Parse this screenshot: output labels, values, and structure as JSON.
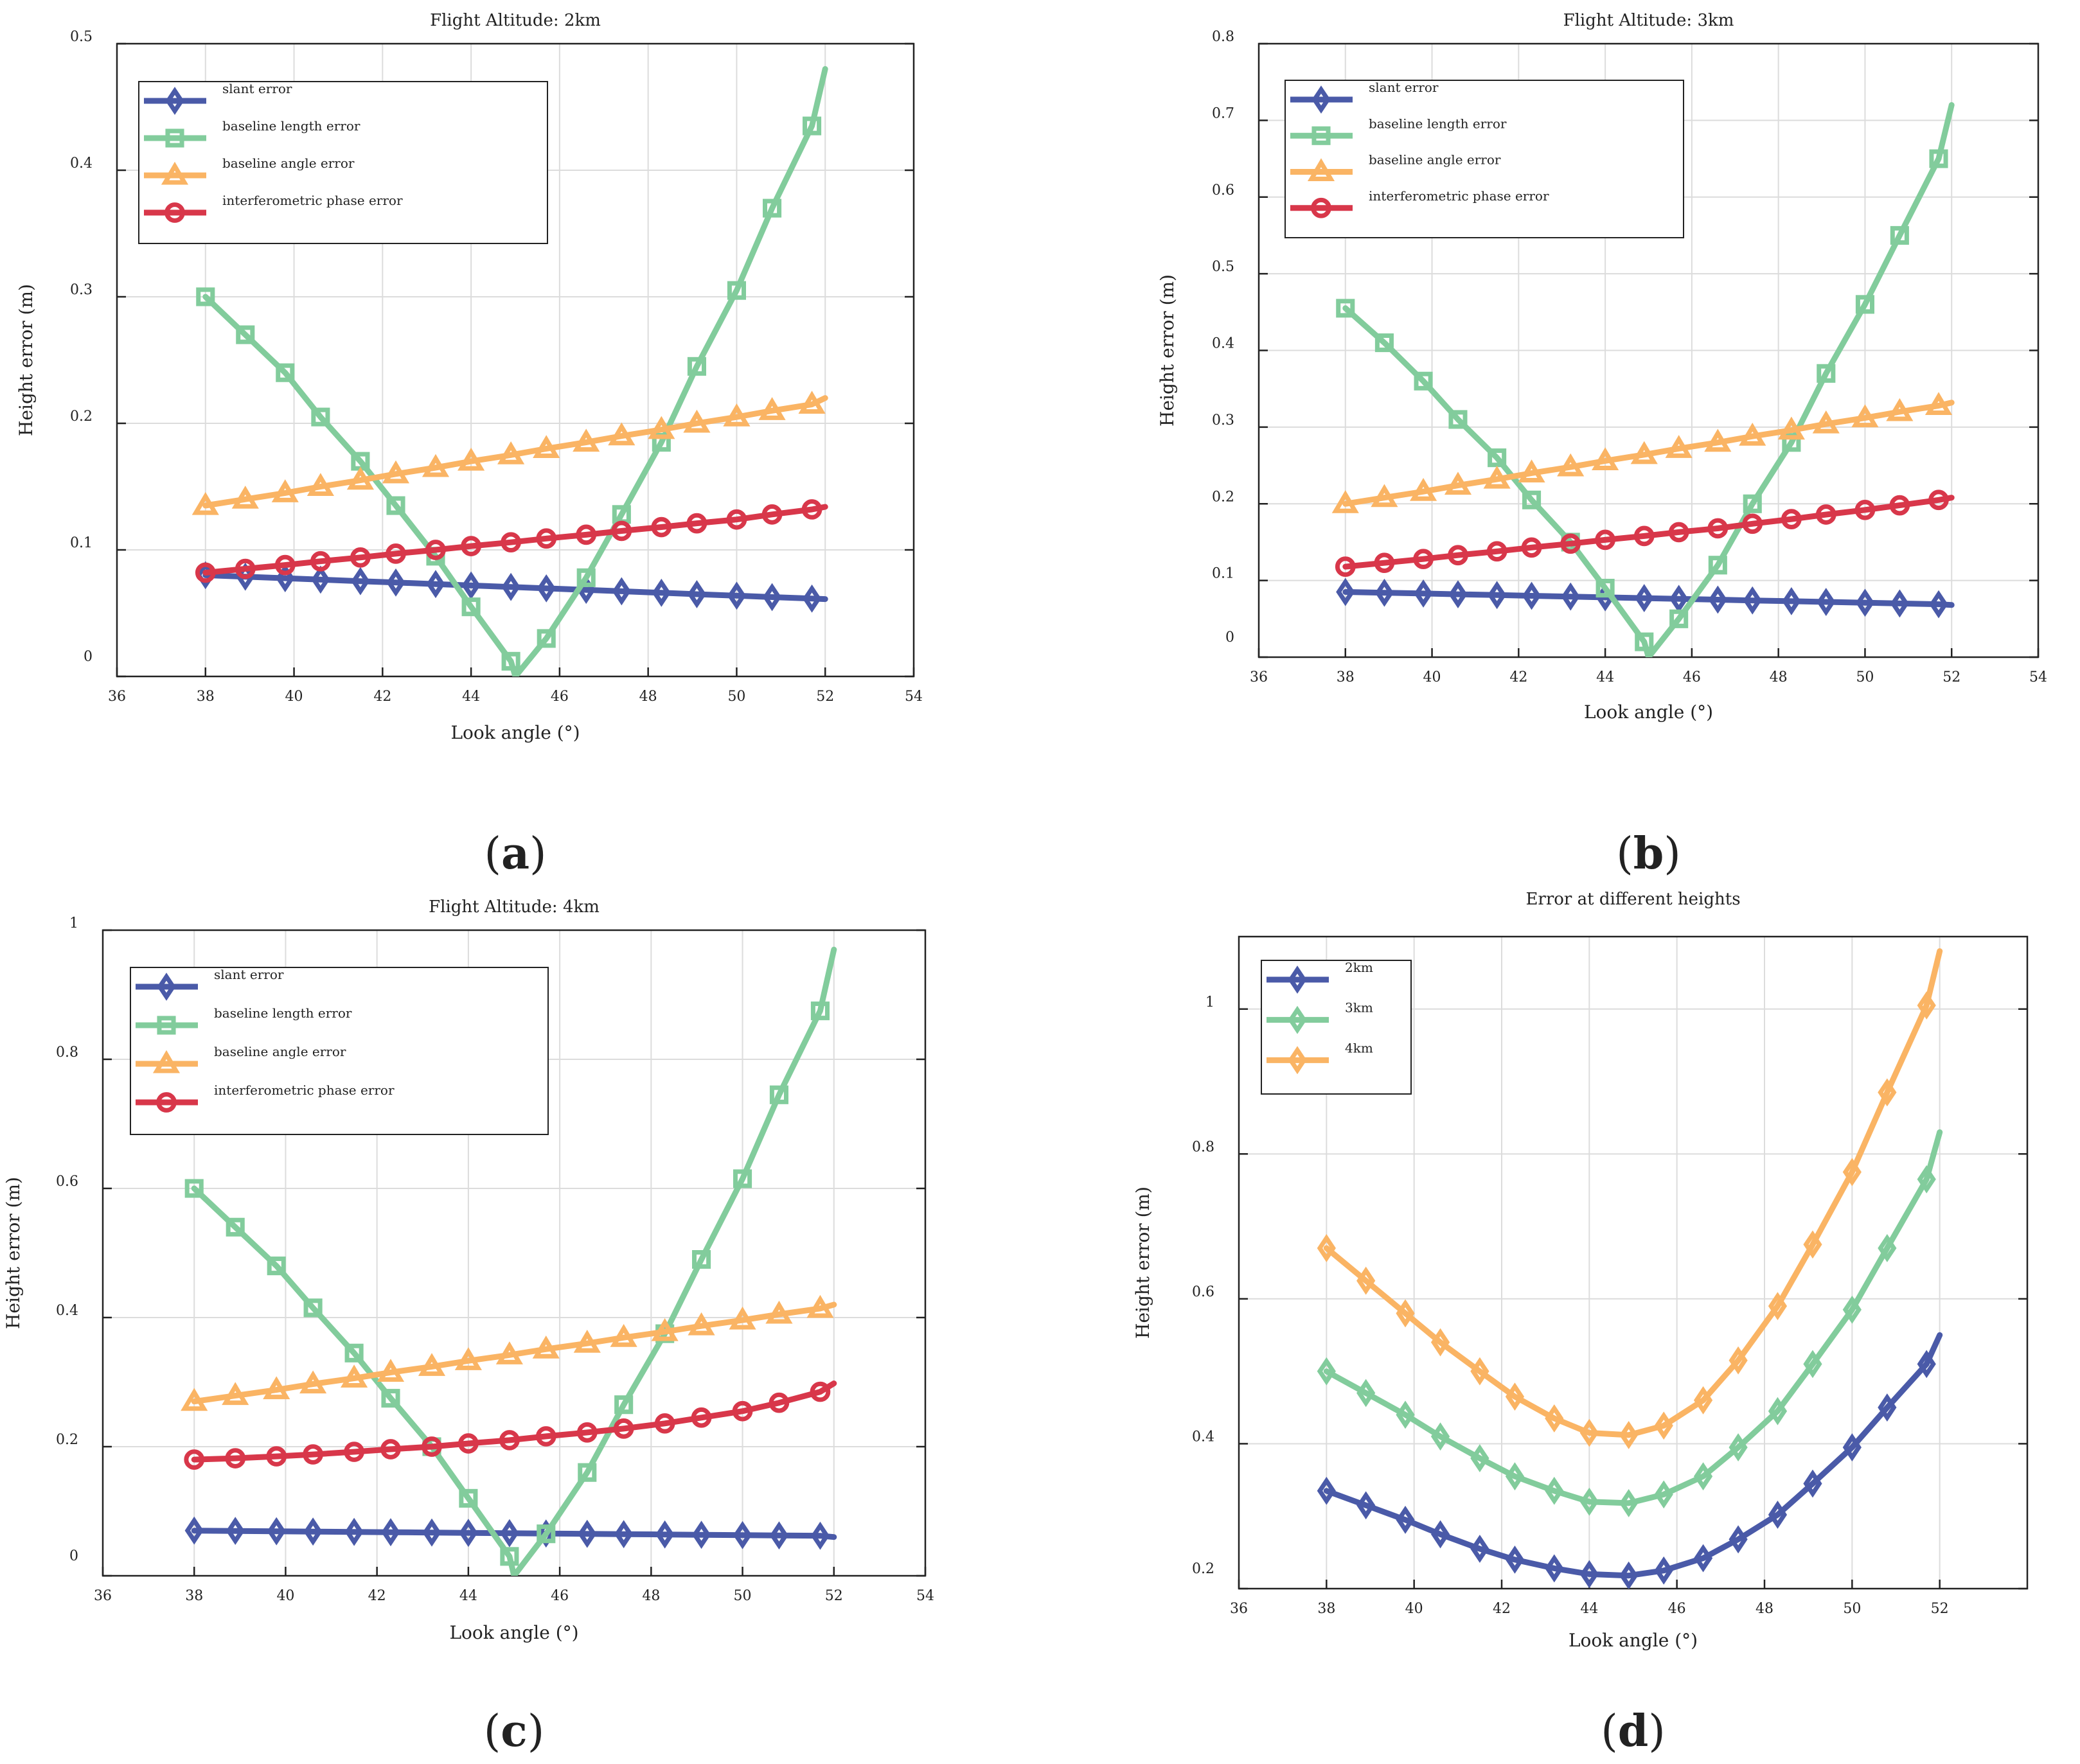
{
  "colors": {
    "slant": "#4a5aa8",
    "baseline_length": "#82cc9c",
    "baseline_angle": "#fab464",
    "phase": "#d8374a",
    "2km": "#4a5aa8",
    "3km": "#82cc9c",
    "4km": "#fab464",
    "grid": "#dcdcdc",
    "axis": "#222222"
  },
  "chart_data": [
    {
      "id": "a",
      "caption": "a",
      "type": "line",
      "title": "Flight Altitude: 2km",
      "xlabel": "Look angle (°)",
      "ylabel": "Height error (m)",
      "xlim": [
        36,
        54
      ],
      "ylim": [
        0,
        0.5
      ],
      "xticks": [
        36,
        38,
        40,
        42,
        44,
        46,
        48,
        50,
        52,
        54
      ],
      "yticks": [
        0,
        0.1,
        0.2,
        0.3,
        0.4,
        0.5
      ],
      "ytick_labels": [
        "0",
        "0.1",
        "0.2",
        "0.3",
        "0.4",
        "0.5"
      ],
      "legend_position": "top-left",
      "marker_x": [
        38,
        38.9,
        39.8,
        40.6,
        41.5,
        42.3,
        43.2,
        44,
        44.9,
        45.7,
        46.6,
        47.4,
        48.3,
        49.1,
        50,
        50.8,
        51.7
      ],
      "series": [
        {
          "name": "slant error",
          "key": "slant",
          "marker": "diamond",
          "x": [
            38,
            38.9,
            39.8,
            40.6,
            41.5,
            42.3,
            43.2,
            44,
            44.9,
            45.7,
            46.6,
            47.4,
            48.3,
            49.1,
            50,
            50.8,
            51.7,
            52
          ],
          "y": [
            0.08,
            0.0788,
            0.0776,
            0.0765,
            0.0753,
            0.0742,
            0.073,
            0.0719,
            0.0707,
            0.0696,
            0.0684,
            0.0673,
            0.0661,
            0.065,
            0.0638,
            0.0627,
            0.0615,
            0.0611
          ]
        },
        {
          "name": "baseline length error",
          "key": "baseline_length",
          "marker": "square",
          "x": [
            38,
            38.9,
            39.8,
            40.6,
            41.5,
            42.3,
            43.2,
            44,
            44.9,
            45,
            45.7,
            46.6,
            47.4,
            48.3,
            49.1,
            50,
            50.8,
            51.7,
            52
          ],
          "y": [
            0.3,
            0.27,
            0.24,
            0.205,
            0.17,
            0.135,
            0.095,
            0.055,
            0.012,
            0,
            0.03,
            0.078,
            0.128,
            0.185,
            0.245,
            0.305,
            0.37,
            0.435,
            0.48
          ]
        },
        {
          "name": "baseline angle error",
          "key": "baseline_angle",
          "marker": "triangle",
          "x": [
            38,
            38.9,
            39.8,
            40.6,
            41.5,
            42.3,
            43.2,
            44,
            44.9,
            45.7,
            46.6,
            47.4,
            48.3,
            49.1,
            50,
            50.8,
            51.7,
            52
          ],
          "y": [
            0.135,
            0.14,
            0.145,
            0.15,
            0.155,
            0.16,
            0.165,
            0.17,
            0.175,
            0.18,
            0.185,
            0.19,
            0.195,
            0.2,
            0.205,
            0.21,
            0.215,
            0.22
          ]
        },
        {
          "name": "interferometric phase error",
          "key": "phase",
          "marker": "circle",
          "x": [
            38,
            38.9,
            39.8,
            40.6,
            41.5,
            42.3,
            43.2,
            44,
            44.9,
            45.7,
            46.6,
            47.4,
            48.3,
            49.1,
            50,
            50.8,
            51.7,
            52
          ],
          "y": [
            0.082,
            0.085,
            0.088,
            0.091,
            0.094,
            0.097,
            0.1,
            0.103,
            0.106,
            0.109,
            0.112,
            0.115,
            0.118,
            0.121,
            0.124,
            0.128,
            0.132,
            0.134
          ]
        }
      ]
    },
    {
      "id": "b",
      "caption": "b",
      "type": "line",
      "title": "Flight Altitude: 3km",
      "xlabel": "Look angle (°)",
      "ylabel": "Height error (m)",
      "xlim": [
        36,
        54
      ],
      "ylim": [
        0,
        0.8
      ],
      "xticks": [
        36,
        38,
        40,
        42,
        44,
        46,
        48,
        50,
        52,
        54
      ],
      "yticks": [
        0,
        0.1,
        0.2,
        0.3,
        0.4,
        0.5,
        0.6,
        0.7,
        0.8
      ],
      "ytick_labels": [
        "0",
        "0.1",
        "0.2",
        "0.3",
        "0.4",
        "0.5",
        "0.6",
        "0.7",
        "0.8"
      ],
      "legend_position": "top-left",
      "marker_x": [
        38,
        38.9,
        39.8,
        40.6,
        41.5,
        42.3,
        43.2,
        44,
        44.9,
        45.7,
        46.6,
        47.4,
        48.3,
        49.1,
        50,
        50.8,
        51.7
      ],
      "series": [
        {
          "name": "slant error",
          "key": "slant",
          "marker": "diamond",
          "x": [
            38,
            38.9,
            39.8,
            40.6,
            41.5,
            42.3,
            43.2,
            44,
            44.9,
            45.7,
            46.6,
            47.4,
            48.3,
            49.1,
            50,
            50.8,
            51.7,
            52
          ],
          "y": [
            0.085,
            0.084,
            0.083,
            0.082,
            0.081,
            0.08,
            0.079,
            0.078,
            0.077,
            0.076,
            0.075,
            0.074,
            0.073,
            0.072,
            0.071,
            0.07,
            0.069,
            0.068
          ]
        },
        {
          "name": "baseline length error",
          "key": "baseline_length",
          "marker": "square",
          "x": [
            38,
            38.9,
            39.8,
            40.6,
            41.5,
            42.3,
            43.2,
            44,
            44.9,
            45,
            45.7,
            46.6,
            47.4,
            48.3,
            49.1,
            50,
            50.8,
            51.7,
            52
          ],
          "y": [
            0.455,
            0.41,
            0.36,
            0.31,
            0.26,
            0.205,
            0.15,
            0.09,
            0.02,
            0,
            0.05,
            0.12,
            0.2,
            0.28,
            0.37,
            0.46,
            0.55,
            0.65,
            0.72
          ]
        },
        {
          "name": "baseline angle error",
          "key": "baseline_angle",
          "marker": "triangle",
          "x": [
            38,
            38.9,
            39.8,
            40.6,
            41.5,
            42.3,
            43.2,
            44,
            44.9,
            45.7,
            46.6,
            47.4,
            48.3,
            49.1,
            50,
            50.8,
            51.7,
            52
          ],
          "y": [
            0.2,
            0.208,
            0.216,
            0.224,
            0.232,
            0.24,
            0.248,
            0.256,
            0.264,
            0.272,
            0.28,
            0.288,
            0.296,
            0.304,
            0.312,
            0.32,
            0.328,
            0.332
          ]
        },
        {
          "name": "interferometric phase error",
          "key": "phase",
          "marker": "circle",
          "x": [
            38,
            38.9,
            39.8,
            40.6,
            41.5,
            42.3,
            43.2,
            44,
            44.9,
            45.7,
            46.6,
            47.4,
            48.3,
            49.1,
            50,
            50.8,
            51.7,
            52
          ],
          "y": [
            0.118,
            0.123,
            0.128,
            0.133,
            0.138,
            0.143,
            0.148,
            0.153,
            0.158,
            0.163,
            0.168,
            0.174,
            0.18,
            0.186,
            0.192,
            0.198,
            0.205,
            0.208
          ]
        }
      ]
    },
    {
      "id": "c",
      "caption": "c",
      "type": "line",
      "title": "Flight Altitude: 4km",
      "xlabel": "Look angle (°)",
      "ylabel": "Height error (m)",
      "xlim": [
        36,
        54
      ],
      "ylim": [
        0,
        1.0
      ],
      "xticks": [
        36,
        38,
        40,
        42,
        44,
        46,
        48,
        50,
        52,
        54
      ],
      "yticks": [
        0,
        0.2,
        0.4,
        0.6,
        0.8,
        1.0
      ],
      "ytick_labels": [
        "0",
        "0.2",
        "0.4",
        "0.6",
        "0.8",
        "1"
      ],
      "legend_position": "top-left",
      "marker_x": [
        38,
        38.9,
        39.8,
        40.6,
        41.5,
        42.3,
        43.2,
        44,
        44.9,
        45.7,
        46.6,
        47.4,
        48.3,
        49.1,
        50,
        50.8,
        51.7
      ],
      "series": [
        {
          "name": "slant error",
          "key": "slant",
          "marker": "diamond",
          "x": [
            38,
            38.9,
            39.8,
            40.6,
            41.5,
            42.3,
            43.2,
            44,
            44.9,
            45.7,
            46.6,
            47.4,
            48.3,
            49.1,
            50,
            50.8,
            51.7,
            52
          ],
          "y": [
            0.07,
            0.0695,
            0.069,
            0.0685,
            0.068,
            0.0675,
            0.067,
            0.0665,
            0.066,
            0.0655,
            0.065,
            0.0645,
            0.064,
            0.0635,
            0.063,
            0.0625,
            0.062,
            0.06
          ]
        },
        {
          "name": "baseline length error",
          "key": "baseline_length",
          "marker": "square",
          "x": [
            38,
            38.9,
            39.8,
            40.6,
            41.5,
            42.3,
            43.2,
            44,
            44.9,
            45,
            45.7,
            46.6,
            47.4,
            48.3,
            49.1,
            50,
            50.8,
            51.7,
            52
          ],
          "y": [
            0.6,
            0.54,
            0.48,
            0.415,
            0.345,
            0.275,
            0.2,
            0.12,
            0.03,
            0,
            0.065,
            0.16,
            0.265,
            0.375,
            0.49,
            0.615,
            0.745,
            0.875,
            0.97
          ]
        },
        {
          "name": "baseline angle error",
          "key": "baseline_angle",
          "marker": "triangle",
          "x": [
            38,
            38.9,
            39.8,
            40.6,
            41.5,
            42.3,
            43.2,
            44,
            44.9,
            45.7,
            46.6,
            47.4,
            48.3,
            49.1,
            50,
            50.8,
            51.7,
            52
          ],
          "y": [
            0.27,
            0.279,
            0.288,
            0.297,
            0.306,
            0.315,
            0.324,
            0.333,
            0.342,
            0.351,
            0.36,
            0.369,
            0.378,
            0.387,
            0.396,
            0.405,
            0.414,
            0.42
          ]
        },
        {
          "name": "interferometric phase error",
          "key": "phase",
          "marker": "circle",
          "x": [
            38,
            38.9,
            39.8,
            40.6,
            41.5,
            42.3,
            43.2,
            44,
            44.9,
            45.7,
            46.6,
            47.4,
            48.3,
            49.1,
            50,
            50.8,
            51.7,
            52
          ],
          "y": [
            0.18,
            0.182,
            0.185,
            0.188,
            0.192,
            0.196,
            0.2,
            0.205,
            0.21,
            0.216,
            0.222,
            0.228,
            0.236,
            0.245,
            0.255,
            0.268,
            0.285,
            0.298
          ]
        }
      ]
    },
    {
      "id": "d",
      "caption": "d",
      "type": "line",
      "title": "Error at different heights",
      "xlabel": "Look angle (°)",
      "ylabel": "Height error (m)",
      "xlim": [
        36,
        54
      ],
      "ylim": [
        0.2,
        1.1
      ],
      "xticks": [
        36,
        38,
        40,
        42,
        44,
        46,
        48,
        50,
        52
      ],
      "yticks": [
        0.2,
        0.4,
        0.6,
        0.8,
        1.0
      ],
      "ytick_labels": [
        "0.2",
        "0.4",
        "0.6",
        "0.8",
        "1"
      ],
      "legend_position": "top-left",
      "marker_x": [
        38,
        38.9,
        39.8,
        40.6,
        41.5,
        42.3,
        43.2,
        44,
        44.9,
        45.7,
        46.6,
        47.4,
        48.3,
        49.1,
        50,
        50.8,
        51.7
      ],
      "series": [
        {
          "name": "2km",
          "key": "2km",
          "marker": "diamond",
          "x": [
            38,
            38.9,
            39.8,
            40.6,
            41.5,
            42.3,
            43.2,
            44,
            44.9,
            45.7,
            46.6,
            47.4,
            48.3,
            49.1,
            50,
            50.8,
            51.7,
            52
          ],
          "y": [
            0.335,
            0.315,
            0.295,
            0.275,
            0.255,
            0.24,
            0.228,
            0.22,
            0.218,
            0.225,
            0.242,
            0.268,
            0.302,
            0.345,
            0.395,
            0.45,
            0.51,
            0.55
          ]
        },
        {
          "name": "3km",
          "key": "3km",
          "marker": "diamond",
          "x": [
            38,
            38.9,
            39.8,
            40.6,
            41.5,
            42.3,
            43.2,
            44,
            44.9,
            45.7,
            46.6,
            47.4,
            48.3,
            49.1,
            50,
            50.8,
            51.7,
            52
          ],
          "y": [
            0.5,
            0.47,
            0.44,
            0.41,
            0.38,
            0.355,
            0.335,
            0.32,
            0.318,
            0.33,
            0.355,
            0.395,
            0.445,
            0.51,
            0.585,
            0.67,
            0.765,
            0.83
          ]
        },
        {
          "name": "4km",
          "key": "4km",
          "marker": "diamond",
          "x": [
            38,
            38.9,
            39.8,
            40.6,
            41.5,
            42.3,
            43.2,
            44,
            44.9,
            45.7,
            46.6,
            47.4,
            48.3,
            49.1,
            50,
            50.8,
            51.7,
            52
          ],
          "y": [
            0.67,
            0.625,
            0.58,
            0.54,
            0.5,
            0.465,
            0.435,
            0.415,
            0.412,
            0.425,
            0.46,
            0.515,
            0.59,
            0.675,
            0.775,
            0.885,
            1.005,
            1.08
          ]
        }
      ]
    }
  ]
}
